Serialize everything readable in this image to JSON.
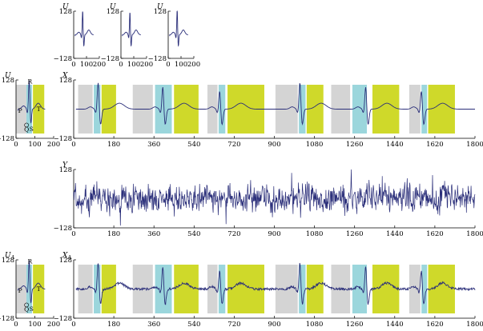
{
  "chart_data": [
    {
      "id": "u1",
      "type": "line",
      "ylabel": "U",
      "xlim": [
        0,
        200
      ],
      "ylim": [
        -128,
        128
      ],
      "yticks": [
        "128",
        "−128"
      ],
      "xticks": [
        "0",
        "100",
        "200"
      ],
      "waveform": "template",
      "variant": 0
    },
    {
      "id": "u2",
      "type": "line",
      "ylabel": "U",
      "xlim": [
        0,
        200
      ],
      "ylim": [
        -128,
        128
      ],
      "yticks": [
        "128",
        "−128"
      ],
      "xticks": [
        "0",
        "100",
        "200"
      ],
      "waveform": "template",
      "variant": 1
    },
    {
      "id": "u3",
      "type": "line",
      "ylabel": "U",
      "xlim": [
        0,
        200
      ],
      "ylim": [
        -128,
        128
      ],
      "yticks": [
        "128",
        "−128"
      ],
      "xticks": [
        "0",
        "100",
        "200"
      ],
      "waveform": "template",
      "variant": 2
    },
    {
      "id": "um",
      "type": "line",
      "ylabel": "U",
      "xlim": [
        0,
        200
      ],
      "ylim": [
        -128,
        128
      ],
      "yticks": [
        "128",
        "−128"
      ],
      "xticks": [
        "0",
        "100",
        "200"
      ],
      "waveform": "template-annotated",
      "wave_labels": [
        "P",
        "Q",
        "R",
        "S",
        "T"
      ],
      "segments": [
        {
          "x0": 0,
          "x1": 55,
          "color": "#d4d4d4"
        },
        {
          "x0": 55,
          "x1": 85,
          "color": "#9bd6dc"
        },
        {
          "x0": 90,
          "x1": 150,
          "color": "#cfd92a"
        }
      ]
    },
    {
      "id": "x",
      "type": "line",
      "ylabel": "X",
      "xlim": [
        0,
        1800
      ],
      "ylim": [
        -128,
        128
      ],
      "yticks": [
        "128",
        "−128"
      ],
      "xticks": [
        "0",
        "180",
        "360",
        "540",
        "720",
        "900",
        "1080",
        "1260",
        "1440",
        "1620",
        "1800"
      ],
      "waveform": "ecg",
      "beats": [
        110,
        400,
        655,
        1015,
        1310,
        1560
      ],
      "segments": [
        {
          "x0": 20,
          "x1": 85,
          "color": "#d4d4d4"
        },
        {
          "x0": 90,
          "x1": 120,
          "color": "#9bd6dc"
        },
        {
          "x0": 125,
          "x1": 190,
          "color": "#cfd92a"
        },
        {
          "x0": 265,
          "x1": 355,
          "color": "#d4d4d4"
        },
        {
          "x0": 365,
          "x1": 440,
          "color": "#9bd6dc"
        },
        {
          "x0": 450,
          "x1": 560,
          "color": "#cfd92a"
        },
        {
          "x0": 600,
          "x1": 645,
          "color": "#d4d4d4"
        },
        {
          "x0": 650,
          "x1": 680,
          "color": "#9bd6dc"
        },
        {
          "x0": 690,
          "x1": 855,
          "color": "#cfd92a"
        },
        {
          "x0": 905,
          "x1": 1005,
          "color": "#d4d4d4"
        },
        {
          "x0": 1010,
          "x1": 1040,
          "color": "#9bd6dc"
        },
        {
          "x0": 1045,
          "x1": 1120,
          "color": "#cfd92a"
        },
        {
          "x0": 1155,
          "x1": 1240,
          "color": "#d4d4d4"
        },
        {
          "x0": 1250,
          "x1": 1315,
          "color": "#9bd6dc"
        },
        {
          "x0": 1340,
          "x1": 1460,
          "color": "#cfd92a"
        },
        {
          "x0": 1505,
          "x1": 1555,
          "color": "#d4d4d4"
        },
        {
          "x0": 1560,
          "x1": 1585,
          "color": "#9bd6dc"
        },
        {
          "x0": 1590,
          "x1": 1710,
          "color": "#cfd92a"
        }
      ]
    },
    {
      "id": "y",
      "type": "line",
      "ylabel": "Y",
      "xlim": [
        0,
        1800
      ],
      "ylim": [
        -128,
        128
      ],
      "yticks": [
        "128",
        "−128"
      ],
      "xticks": [
        "0",
        "180",
        "360",
        "540",
        "720",
        "900",
        "1080",
        "1260",
        "1440",
        "1620",
        "1800"
      ],
      "waveform": "noise"
    },
    {
      "id": "ua",
      "type": "line",
      "ylabel": "U",
      "ylabel_sub": "A",
      "xlim": [
        0,
        200
      ],
      "ylim": [
        -128,
        128
      ],
      "yticks": [
        "128",
        "−128"
      ],
      "xticks": [
        "0",
        "100",
        "200"
      ],
      "waveform": "template-annotated",
      "wave_labels": [
        "P",
        "Q",
        "R",
        "S",
        "T"
      ],
      "segments": [
        {
          "x0": 0,
          "x1": 55,
          "color": "#d4d4d4"
        },
        {
          "x0": 55,
          "x1": 85,
          "color": "#9bd6dc"
        },
        {
          "x0": 90,
          "x1": 150,
          "color": "#cfd92a"
        }
      ]
    },
    {
      "id": "xa",
      "type": "line",
      "ylabel": "X",
      "ylabel_sub": "A",
      "xlim": [
        0,
        1800
      ],
      "ylim": [
        -128,
        128
      ],
      "yticks": [
        "128",
        "−128"
      ],
      "xticks": [
        "0",
        "180",
        "360",
        "540",
        "720",
        "900",
        "1080",
        "1260",
        "1440",
        "1620",
        "1800"
      ],
      "waveform": "ecg-approx",
      "beats": [
        110,
        400,
        655,
        1015,
        1310,
        1560
      ],
      "segments": [
        {
          "x0": 20,
          "x1": 85,
          "color": "#d4d4d4"
        },
        {
          "x0": 90,
          "x1": 120,
          "color": "#9bd6dc"
        },
        {
          "x0": 125,
          "x1": 190,
          "color": "#cfd92a"
        },
        {
          "x0": 265,
          "x1": 355,
          "color": "#d4d4d4"
        },
        {
          "x0": 365,
          "x1": 440,
          "color": "#9bd6dc"
        },
        {
          "x0": 450,
          "x1": 560,
          "color": "#cfd92a"
        },
        {
          "x0": 600,
          "x1": 645,
          "color": "#d4d4d4"
        },
        {
          "x0": 650,
          "x1": 680,
          "color": "#9bd6dc"
        },
        {
          "x0": 690,
          "x1": 855,
          "color": "#cfd92a"
        },
        {
          "x0": 905,
          "x1": 1005,
          "color": "#d4d4d4"
        },
        {
          "x0": 1010,
          "x1": 1040,
          "color": "#9bd6dc"
        },
        {
          "x0": 1045,
          "x1": 1120,
          "color": "#cfd92a"
        },
        {
          "x0": 1155,
          "x1": 1240,
          "color": "#d4d4d4"
        },
        {
          "x0": 1250,
          "x1": 1315,
          "color": "#9bd6dc"
        },
        {
          "x0": 1340,
          "x1": 1460,
          "color": "#cfd92a"
        },
        {
          "x0": 1505,
          "x1": 1555,
          "color": "#d4d4d4"
        },
        {
          "x0": 1560,
          "x1": 1585,
          "color": "#9bd6dc"
        },
        {
          "x0": 1590,
          "x1": 1710,
          "color": "#cfd92a"
        }
      ]
    }
  ],
  "line_color": "#2b2f7a"
}
